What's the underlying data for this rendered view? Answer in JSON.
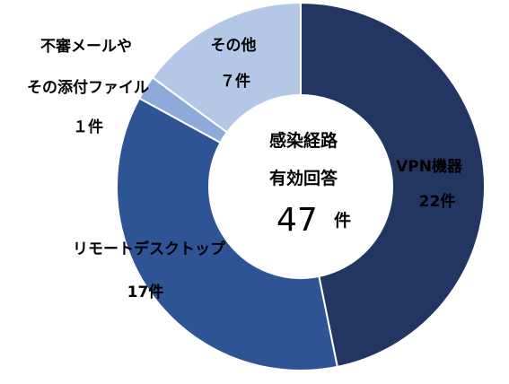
{
  "chart_data": {
    "type": "donut",
    "center_text": {
      "line1": "感染経路",
      "line2": "有効回答",
      "total": "47",
      "unit": "件"
    },
    "slices": [
      {
        "label": "VPN機器",
        "value": 22,
        "value_text": "22件",
        "color": "#233561"
      },
      {
        "label": "リモートデスクトップ",
        "value": 17,
        "value_text": "17件",
        "color": "#2f5496"
      },
      {
        "label_lines": [
          "不審メールや",
          "その添付ファイル"
        ],
        "value": 1,
        "value_text": "１件",
        "color": "#8eaadb"
      },
      {
        "label": "その他",
        "value": 7,
        "value_text": "７件",
        "color": "#b4c7e7"
      }
    ]
  }
}
